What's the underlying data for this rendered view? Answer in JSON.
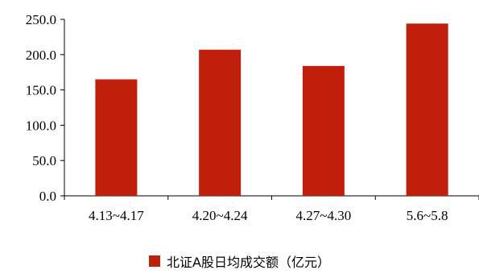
{
  "chart_data": {
    "type": "bar",
    "categories": [
      "4.13~4.17",
      "4.20~4.24",
      "4.27~4.30",
      "5.6~5.8"
    ],
    "series": [
      {
        "name": "北证A股日均成交额（亿元）",
        "values": [
          165.0,
          207.0,
          184.0,
          244.0
        ],
        "color": "#c0200b"
      }
    ],
    "y_ticks": [
      "0.0",
      "50.0",
      "100.0",
      "150.0",
      "200.0",
      "250.0"
    ],
    "ylim": [
      0,
      250
    ],
    "grid": false,
    "legend_position": "bottom"
  }
}
